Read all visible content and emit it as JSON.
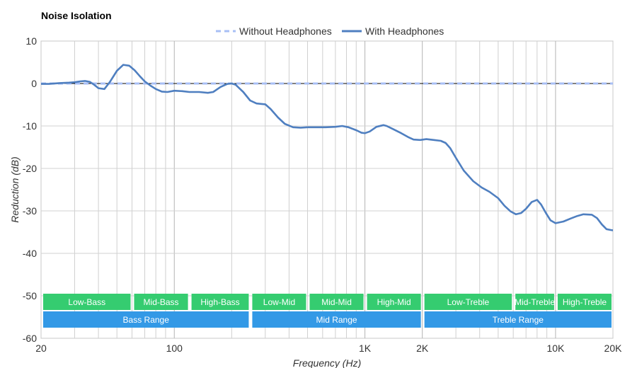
{
  "chart_data": {
    "type": "line",
    "title": "Noise Isolation",
    "xlabel": "Frequency (Hz)",
    "ylabel": "Reduction (dB)",
    "xscale": "log",
    "xlim": [
      20,
      20000
    ],
    "ylim": [
      -60,
      10
    ],
    "grid": true,
    "legend_position": "top-center",
    "x_ticks": [
      {
        "value": 20,
        "label": "20"
      },
      {
        "value": 100,
        "label": "100"
      },
      {
        "value": 1000,
        "label": "1K"
      },
      {
        "value": 2000,
        "label": "2K"
      },
      {
        "value": 10000,
        "label": "10K"
      },
      {
        "value": 20000,
        "label": "20K"
      }
    ],
    "y_ticks": [
      {
        "value": 10,
        "label": "10"
      },
      {
        "value": 0,
        "label": "0"
      },
      {
        "value": -10,
        "label": "-10"
      },
      {
        "value": -20,
        "label": "-20"
      },
      {
        "value": -30,
        "label": "-30"
      },
      {
        "value": -40,
        "label": "-40"
      },
      {
        "value": -50,
        "label": "-50"
      },
      {
        "value": -60,
        "label": "-60"
      }
    ],
    "series": [
      {
        "name": "Without Headphones",
        "color": "#a8bff5",
        "dashed": true,
        "points": [
          [
            20,
            0
          ],
          [
            20000,
            0
          ]
        ]
      },
      {
        "name": "With Headphones",
        "color": "#4f7fc0",
        "dashed": false,
        "points": [
          [
            20,
            -0.1
          ],
          [
            22,
            -0.1
          ],
          [
            25,
            0.1
          ],
          [
            28,
            0.2
          ],
          [
            30,
            0.3
          ],
          [
            32,
            0.5
          ],
          [
            34,
            0.6
          ],
          [
            36,
            0.4
          ],
          [
            38,
            -0.3
          ],
          [
            40,
            -1.1
          ],
          [
            43,
            -1.3
          ],
          [
            46,
            0.4
          ],
          [
            50,
            3
          ],
          [
            54,
            4.4
          ],
          [
            58,
            4.2
          ],
          [
            62,
            3.1
          ],
          [
            66,
            1.7
          ],
          [
            70,
            0.5
          ],
          [
            75,
            -0.5
          ],
          [
            80,
            -1.3
          ],
          [
            86,
            -1.9
          ],
          [
            92,
            -2.0
          ],
          [
            100,
            -1.7
          ],
          [
            110,
            -1.8
          ],
          [
            120,
            -2.0
          ],
          [
            135,
            -2.0
          ],
          [
            150,
            -2.2
          ],
          [
            160,
            -2.0
          ],
          [
            175,
            -0.8
          ],
          [
            190,
            -0.1
          ],
          [
            200,
            0.0
          ],
          [
            210,
            -0.3
          ],
          [
            230,
            -2.0
          ],
          [
            250,
            -4.0
          ],
          [
            270,
            -4.7
          ],
          [
            300,
            -4.9
          ],
          [
            320,
            -6.0
          ],
          [
            350,
            -8.0
          ],
          [
            380,
            -9.5
          ],
          [
            420,
            -10.3
          ],
          [
            460,
            -10.4
          ],
          [
            500,
            -10.3
          ],
          [
            560,
            -10.3
          ],
          [
            620,
            -10.3
          ],
          [
            700,
            -10.2
          ],
          [
            760,
            -10.0
          ],
          [
            820,
            -10.3
          ],
          [
            900,
            -11.0
          ],
          [
            960,
            -11.6
          ],
          [
            1000,
            -11.7
          ],
          [
            1060,
            -11.3
          ],
          [
            1150,
            -10.2
          ],
          [
            1250,
            -9.8
          ],
          [
            1300,
            -10.0
          ],
          [
            1400,
            -10.7
          ],
          [
            1550,
            -11.7
          ],
          [
            1700,
            -12.7
          ],
          [
            1800,
            -13.2
          ],
          [
            1950,
            -13.3
          ],
          [
            2100,
            -13.1
          ],
          [
            2300,
            -13.3
          ],
          [
            2500,
            -13.5
          ],
          [
            2650,
            -14.0
          ],
          [
            2800,
            -15.2
          ],
          [
            3000,
            -17.5
          ],
          [
            3300,
            -20.5
          ],
          [
            3700,
            -23.0
          ],
          [
            4100,
            -24.5
          ],
          [
            4500,
            -25.5
          ],
          [
            5000,
            -27.0
          ],
          [
            5400,
            -28.8
          ],
          [
            5800,
            -30.1
          ],
          [
            6200,
            -30.8
          ],
          [
            6600,
            -30.5
          ],
          [
            7000,
            -29.5
          ],
          [
            7500,
            -27.9
          ],
          [
            8000,
            -27.4
          ],
          [
            8400,
            -28.5
          ],
          [
            8900,
            -30.5
          ],
          [
            9400,
            -32.2
          ],
          [
            10000,
            -32.9
          ],
          [
            11000,
            -32.5
          ],
          [
            12000,
            -31.8
          ],
          [
            13000,
            -31.2
          ],
          [
            14000,
            -30.8
          ],
          [
            15500,
            -30.9
          ],
          [
            16500,
            -31.7
          ],
          [
            17500,
            -33.2
          ],
          [
            18500,
            -34.3
          ],
          [
            19500,
            -34.5
          ],
          [
            20200,
            -34.6
          ],
          [
            21500,
            -35.1
          ],
          [
            23000,
            -36.3
          ],
          [
            24500,
            -37.3
          ]
        ]
      }
    ],
    "bands": [
      {
        "label": "Low-Bass",
        "row": 1,
        "from": 20,
        "to": 60,
        "color": "#35cc70"
      },
      {
        "label": "Mid-Bass",
        "row": 1,
        "from": 60,
        "to": 120,
        "color": "#35cc70"
      },
      {
        "label": "High-Bass",
        "row": 1,
        "from": 120,
        "to": 250,
        "color": "#35cc70"
      },
      {
        "label": "Low-Mid",
        "row": 1,
        "from": 250,
        "to": 500,
        "color": "#35cc70"
      },
      {
        "label": "Mid-Mid",
        "row": 1,
        "from": 500,
        "to": 1000,
        "color": "#35cc70"
      },
      {
        "label": "High-Mid",
        "row": 1,
        "from": 1000,
        "to": 2000,
        "color": "#35cc70"
      },
      {
        "label": "Low-Treble",
        "row": 1,
        "from": 2000,
        "to": 6000,
        "color": "#35cc70"
      },
      {
        "label": "Mid-Treble",
        "row": 1,
        "from": 6000,
        "to": 10000,
        "color": "#35cc70"
      },
      {
        "label": "High-Treble",
        "row": 1,
        "from": 10000,
        "to": 20000,
        "color": "#35cc70"
      },
      {
        "label": "Bass Range",
        "row": 2,
        "from": 20,
        "to": 250,
        "color": "#3399e6"
      },
      {
        "label": "Mid Range",
        "row": 2,
        "from": 250,
        "to": 2000,
        "color": "#3399e6"
      },
      {
        "label": "Treble Range",
        "row": 2,
        "from": 2000,
        "to": 20000,
        "color": "#3399e6"
      }
    ]
  }
}
